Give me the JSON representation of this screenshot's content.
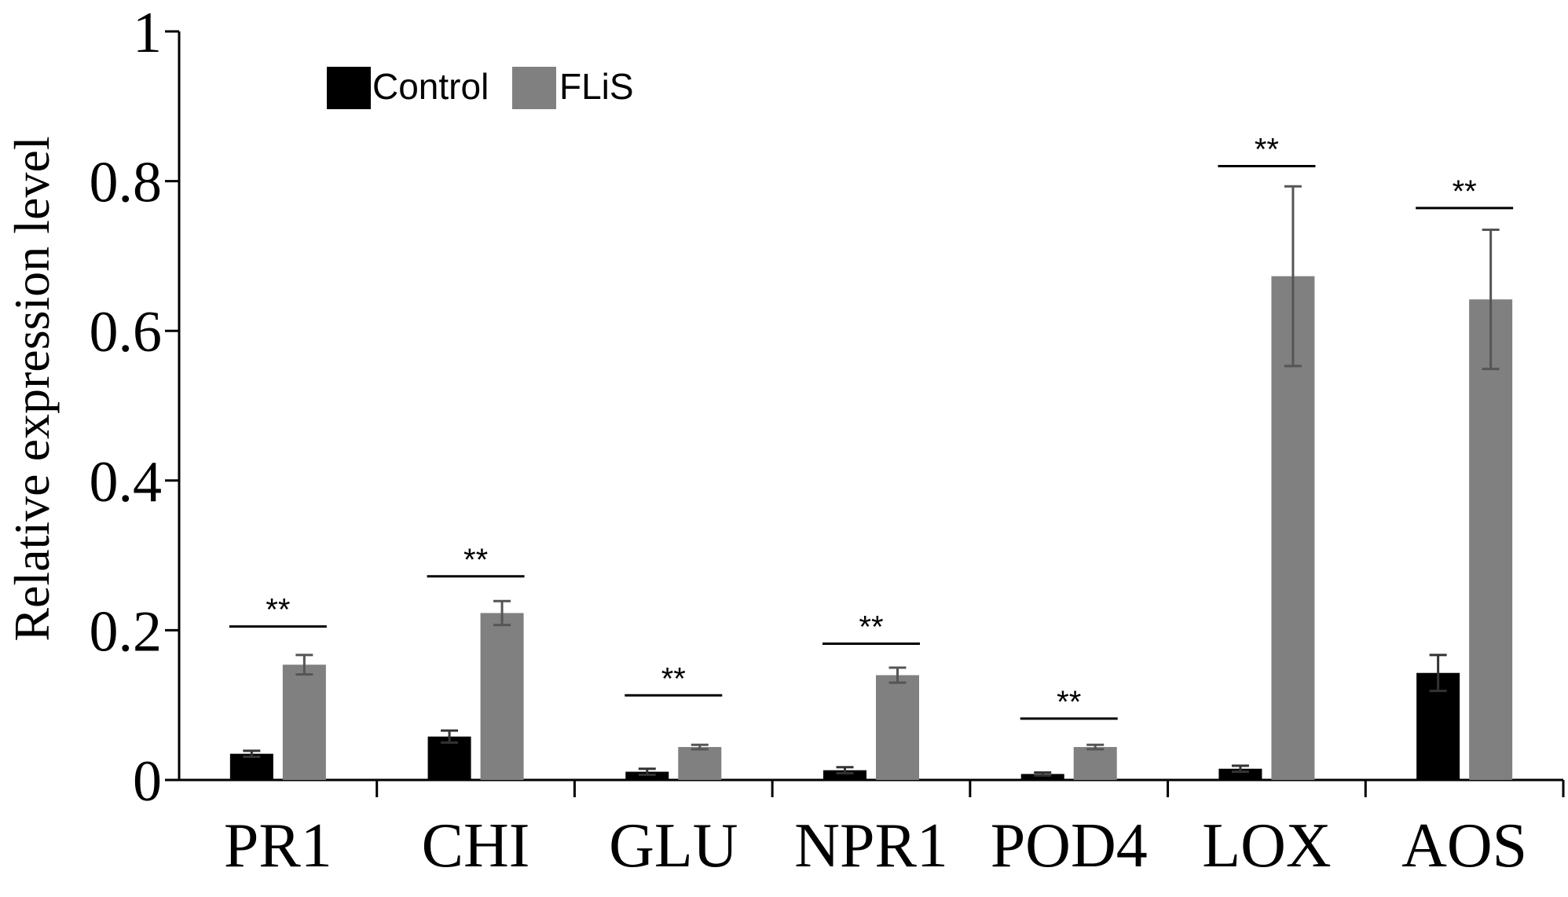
{
  "chart_data": {
    "type": "bar",
    "title": "",
    "xlabel": "",
    "ylabel": "Relative expression level",
    "ylim": [
      0,
      1
    ],
    "yticks": [
      0,
      0.2,
      0.4,
      0.6,
      0.8,
      1
    ],
    "ytick_labels": [
      "0",
      "0.2",
      "0.4",
      "0.6",
      "0.8",
      "1"
    ],
    "grid": false,
    "legend_position": "top-left",
    "categories": [
      "PR1",
      "CHI",
      "GLU",
      "NPR1",
      "POD4",
      "LOX",
      "AOS"
    ],
    "series": [
      {
        "name": "Control",
        "color": "#000000",
        "values": [
          0.035,
          0.058,
          0.011,
          0.013,
          0.008,
          0.015,
          0.143
        ],
        "errors": [
          0.004,
          0.008,
          0.004,
          0.004,
          0.002,
          0.004,
          0.024
        ]
      },
      {
        "name": "FLiS",
        "color": "#808080",
        "values": [
          0.154,
          0.223,
          0.044,
          0.14,
          0.044,
          0.673,
          0.642
        ],
        "errors": [
          0.013,
          0.016,
          0.003,
          0.01,
          0.003,
          0.12,
          0.093
        ]
      }
    ],
    "annotations": [
      {
        "category": "PR1",
        "text": "**",
        "bar_y": 0.205
      },
      {
        "category": "CHI",
        "text": "**",
        "bar_y": 0.272
      },
      {
        "category": "GLU",
        "text": "**",
        "bar_y": 0.113
      },
      {
        "category": "NPR1",
        "text": "**",
        "bar_y": 0.182
      },
      {
        "category": "POD4",
        "text": "**",
        "bar_y": 0.082
      },
      {
        "category": "LOX",
        "text": "**",
        "bar_y": 0.82
      },
      {
        "category": "AOS",
        "text": "**",
        "bar_y": 0.764
      }
    ]
  }
}
